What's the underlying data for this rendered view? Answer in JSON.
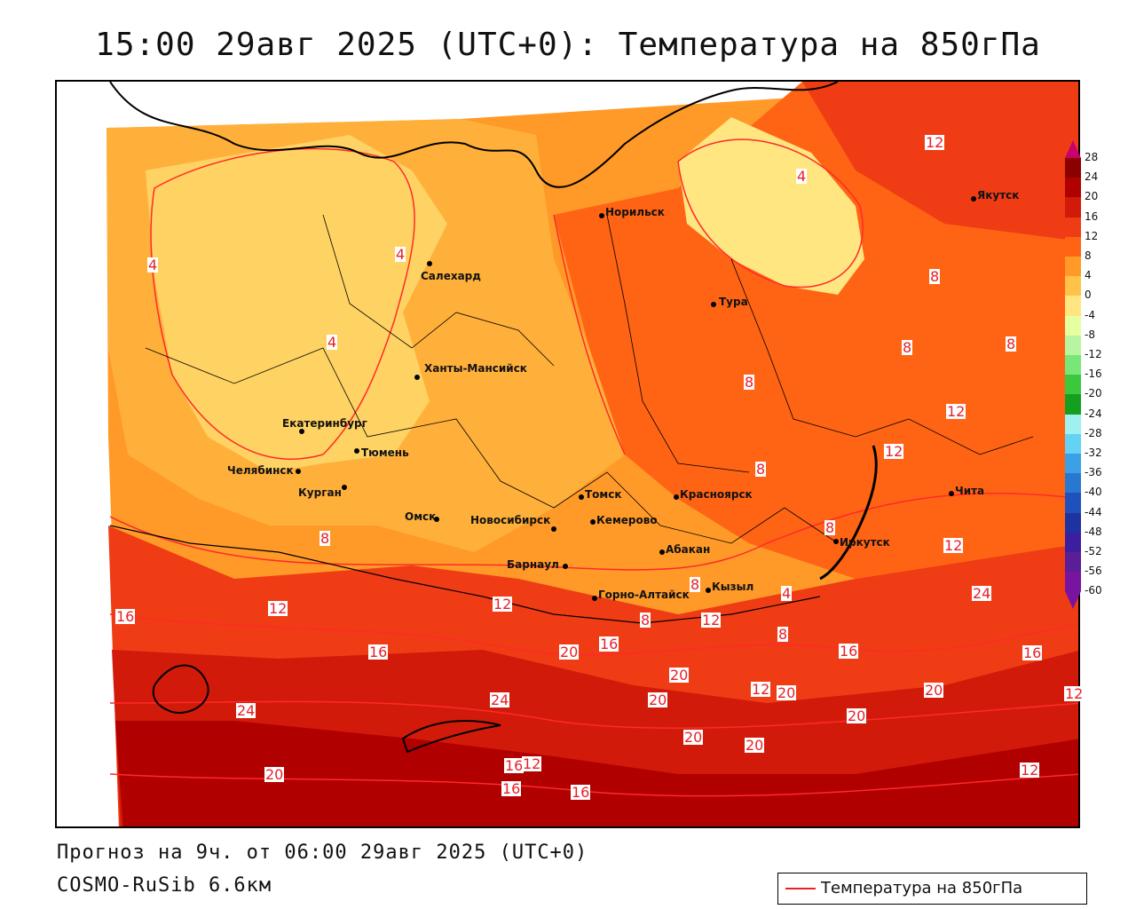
{
  "title": "15:00 29авг 2025 (UTC+0): Температура на 850гПа",
  "forecast_line": "Прогноз на 9ч. от 06:00 29авг 2025 (UTC+0)",
  "model_line": "COSMO-RuSib 6.6км",
  "legend_label": "Температура на 850гПа",
  "colorbar": {
    "ticks": [
      "28",
      "24",
      "20",
      "16",
      "12",
      "8",
      "4",
      "0",
      "-4",
      "-8",
      "-12",
      "-16",
      "-20",
      "-24",
      "-28",
      "-32",
      "-36",
      "-40",
      "-44",
      "-48",
      "-52",
      "-56",
      "-60"
    ],
    "colors": [
      "#c8006e",
      "#8b0000",
      "#b00000",
      "#d21a0a",
      "#f03c14",
      "#ff6414",
      "#ff9a28",
      "#ffc34a",
      "#ffe680",
      "#e6ffa0",
      "#b8f5a0",
      "#78e678",
      "#3cc83c",
      "#14a01e",
      "#a0f0f0",
      "#64d2f5",
      "#3ca0e6",
      "#2878d2",
      "#1e50be",
      "#1e32a0",
      "#3c1ea0",
      "#5a1e96",
      "#7814a0"
    ]
  },
  "cities": [
    {
      "name": "Норильск"
    },
    {
      "name": "Якутск"
    },
    {
      "name": "Салехард"
    },
    {
      "name": "Тура"
    },
    {
      "name": "Ханты-Мансийск"
    },
    {
      "name": "Екатеринбург"
    },
    {
      "name": "Тюмень"
    },
    {
      "name": "Челябинск"
    },
    {
      "name": "Курган"
    },
    {
      "name": "Омск"
    },
    {
      "name": "Новосибирск"
    },
    {
      "name": "Томск"
    },
    {
      "name": "Кемерово"
    },
    {
      "name": "Красноярск"
    },
    {
      "name": "Барнаул"
    },
    {
      "name": "Абакан"
    },
    {
      "name": "Кызыл"
    },
    {
      "name": "Горно-Алтайск"
    },
    {
      "name": "Иркутск"
    },
    {
      "name": "Чита"
    }
  ],
  "contour_labels": [
    "12",
    "4",
    "4",
    "4",
    "4",
    "8",
    "8",
    "8",
    "8",
    "12",
    "12",
    "8",
    "12",
    "8",
    "8",
    "8",
    "16",
    "12",
    "12",
    "16",
    "12",
    "16",
    "20",
    "16",
    "16",
    "20",
    "20",
    "24",
    "24",
    "20",
    "20",
    "24",
    "20",
    "16",
    "20",
    "12",
    "12",
    "16",
    "20",
    "20",
    "16",
    "8",
    "4",
    "8",
    "12",
    "12"
  ]
}
